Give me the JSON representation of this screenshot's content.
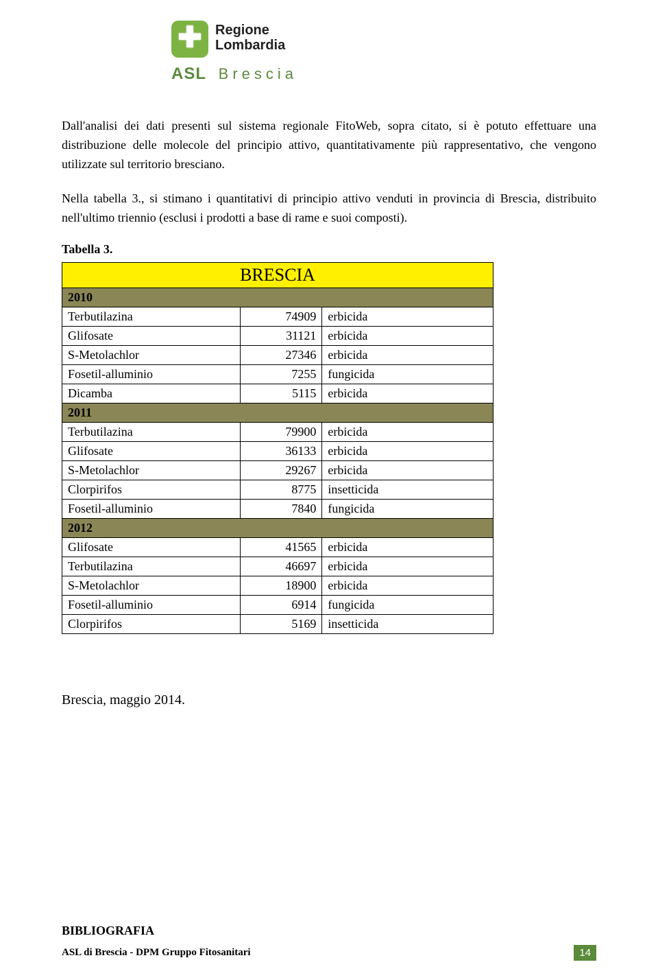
{
  "header": {
    "region1": "Regione",
    "region2": "Lombardia",
    "asl_bold": "ASL",
    "asl_city": "Brescia"
  },
  "paragraph1": "Dall'analisi dei dati presenti sul sistema regionale FitoWeb, sopra citato, si è potuto effettuare una distribuzione delle molecole del principio attivo, quantitativamente più rappresentativo, che vengono utilizzate sul territorio bresciano.",
  "paragraph2": "Nella tabella 3., si stimano i quantitativi di principio attivo venduti in provincia di Brescia, distribuito nell'ultimo triennio (esclusi i prodotti a base di rame e suoi composti).",
  "table_label": "Tabella 3.",
  "table": {
    "title": "BRESCIA",
    "colors": {
      "header_bg": "#fff000",
      "year_bg": "#8a8656",
      "border": "#000000"
    },
    "sections": [
      {
        "year": "2010",
        "rows": [
          {
            "name": "Terbutilazina",
            "qty": "74909",
            "type": "erbicida"
          },
          {
            "name": "Glifosate",
            "qty": "31121",
            "type": "erbicida"
          },
          {
            "name": "S-Metolachlor",
            "qty": "27346",
            "type": "erbicida"
          },
          {
            "name": "Fosetil-alluminio",
            "qty": "7255",
            "type": "fungicida"
          },
          {
            "name": "Dicamba",
            "qty": "5115",
            "type": "erbicida"
          }
        ]
      },
      {
        "year": "2011",
        "rows": [
          {
            "name": "Terbutilazina",
            "qty": "79900",
            "type": "erbicida"
          },
          {
            "name": "Glifosate",
            "qty": "36133",
            "type": "erbicida"
          },
          {
            "name": "S-Metolachlor",
            "qty": "29267",
            "type": "erbicida"
          },
          {
            "name": "Clorpirifos",
            "qty": "8775",
            "type": "insetticida"
          },
          {
            "name": "Fosetil-alluminio",
            "qty": "7840",
            "type": "fungicida"
          }
        ]
      },
      {
        "year": "2012",
        "rows": [
          {
            "name": "Glifosate",
            "qty": "41565",
            "type": "erbicida"
          },
          {
            "name": "Terbutilazina",
            "qty": "46697",
            "type": "erbicida"
          },
          {
            "name": "S-Metolachlor",
            "qty": "18900",
            "type": "erbicida"
          },
          {
            "name": "Fosetil-alluminio",
            "qty": "6914",
            "type": "fungicida"
          },
          {
            "name": "Clorpirifos",
            "qty": "5169",
            "type": "insetticida"
          }
        ]
      }
    ]
  },
  "closing_text": "Brescia, maggio 2014.",
  "biblio_heading": "BIBLIOGRAFIA",
  "footer_text": "ASL di Brescia - DPM Gruppo Fitosanitari",
  "page_number": "14"
}
